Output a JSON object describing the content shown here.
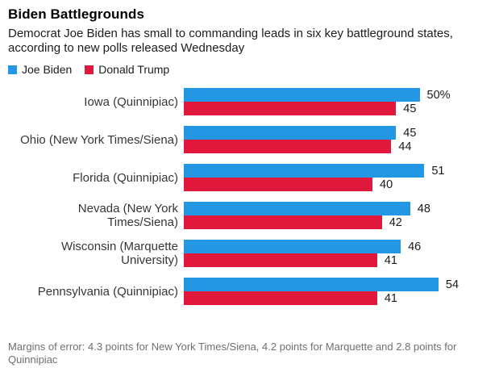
{
  "chart_data": {
    "type": "bar",
    "orientation": "horizontal",
    "title": "Biden Battlegrounds",
    "subtitle": "Democrat Joe Biden has small to commanding leads in six key battleground states, according to new polls released Wednesday",
    "footnote": "Margins of error: 4.3 points for New York Times/Siena, 4.2 points for Marquette and 2.8 points for Quinnipiac",
    "legend_position": "top-left",
    "grid": false,
    "xlim": [
      0,
      62
    ],
    "unit": "percent",
    "categories": [
      "Iowa (Quinnipiac)",
      "Ohio (New York Times/Siena)",
      "Florida (Quinnipiac)",
      "Nevada (New York Times/Siena)",
      "Wisconsin (Marquette University)",
      "Pennsylvania (Quinnipiac)"
    ],
    "series": [
      {
        "name": "Joe Biden",
        "color": "#2397e4",
        "values": [
          50,
          45,
          51,
          48,
          46,
          54
        ],
        "value_labels": [
          "50%",
          "45",
          "51",
          "48",
          "46",
          "54"
        ]
      },
      {
        "name": "Donald Trump",
        "color": "#e0193c",
        "values": [
          45,
          44,
          40,
          42,
          41,
          41
        ],
        "value_labels": [
          "45",
          "44",
          "40",
          "42",
          "41",
          "41"
        ]
      }
    ]
  }
}
